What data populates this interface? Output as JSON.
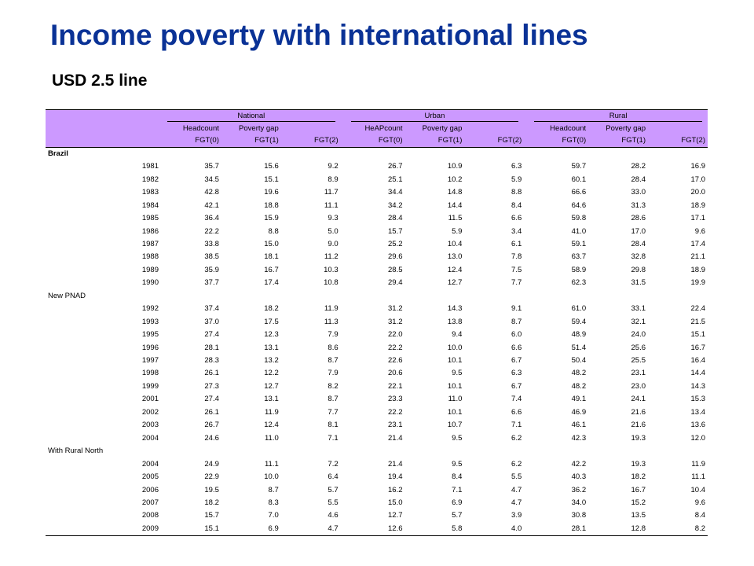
{
  "title": "Income poverty with international lines",
  "subtitle": "USD 2.5 line",
  "table": {
    "groups": [
      "National",
      "Urban",
      "Rural"
    ],
    "measure_labels": [
      [
        "Headcount",
        "Poverty gap",
        ""
      ],
      [
        "HeAPcount",
        "Poverty gap",
        ""
      ],
      [
        "Headcount",
        "Poverty gap",
        ""
      ]
    ],
    "fgt_labels": [
      "FGT(0)",
      "FGT(1)",
      "FGT(2)"
    ],
    "sections": [
      {
        "label": "Brazil",
        "rows": [
          [
            "1981",
            "35.7",
            "15.6",
            "9.2",
            "26.7",
            "10.9",
            "6.3",
            "59.7",
            "28.2",
            "16.9"
          ],
          [
            "1982",
            "34.5",
            "15.1",
            "8.9",
            "25.1",
            "10.2",
            "5.9",
            "60.1",
            "28.4",
            "17.0"
          ],
          [
            "1983",
            "42.8",
            "19.6",
            "11.7",
            "34.4",
            "14.8",
            "8.8",
            "66.6",
            "33.0",
            "20.0"
          ],
          [
            "1984",
            "42.1",
            "18.8",
            "11.1",
            "34.2",
            "14.4",
            "8.4",
            "64.6",
            "31.3",
            "18.9"
          ],
          [
            "1985",
            "36.4",
            "15.9",
            "9.3",
            "28.4",
            "11.5",
            "6.6",
            "59.8",
            "28.6",
            "17.1"
          ],
          [
            "1986",
            "22.2",
            "8.8",
            "5.0",
            "15.7",
            "5.9",
            "3.4",
            "41.0",
            "17.0",
            "9.6"
          ],
          [
            "1987",
            "33.8",
            "15.0",
            "9.0",
            "25.2",
            "10.4",
            "6.1",
            "59.1",
            "28.4",
            "17.4"
          ],
          [
            "1988",
            "38.5",
            "18.1",
            "11.2",
            "29.6",
            "13.0",
            "7.8",
            "63.7",
            "32.8",
            "21.1"
          ],
          [
            "1989",
            "35.9",
            "16.7",
            "10.3",
            "28.5",
            "12.4",
            "7.5",
            "58.9",
            "29.8",
            "18.9"
          ],
          [
            "1990",
            "37.7",
            "17.4",
            "10.8",
            "29.4",
            "12.7",
            "7.7",
            "62.3",
            "31.5",
            "19.9"
          ]
        ]
      },
      {
        "label": "New PNAD",
        "rows": [
          [
            "1992",
            "37.4",
            "18.2",
            "11.9",
            "31.2",
            "14.3",
            "9.1",
            "61.0",
            "33.1",
            "22.4"
          ],
          [
            "1993",
            "37.0",
            "17.5",
            "11.3",
            "31.2",
            "13.8",
            "8.7",
            "59.4",
            "32.1",
            "21.5"
          ],
          [
            "1995",
            "27.4",
            "12.3",
            "7.9",
            "22.0",
            "9.4",
            "6.0",
            "48.9",
            "24.0",
            "15.1"
          ],
          [
            "1996",
            "28.1",
            "13.1",
            "8.6",
            "22.2",
            "10.0",
            "6.6",
            "51.4",
            "25.6",
            "16.7"
          ],
          [
            "1997",
            "28.3",
            "13.2",
            "8.7",
            "22.6",
            "10.1",
            "6.7",
            "50.4",
            "25.5",
            "16.4"
          ],
          [
            "1998",
            "26.1",
            "12.2",
            "7.9",
            "20.6",
            "9.5",
            "6.3",
            "48.2",
            "23.1",
            "14.4"
          ],
          [
            "1999",
            "27.3",
            "12.7",
            "8.2",
            "22.1",
            "10.1",
            "6.7",
            "48.2",
            "23.0",
            "14.3"
          ],
          [
            "2001",
            "27.4",
            "13.1",
            "8.7",
            "23.3",
            "11.0",
            "7.4",
            "49.1",
            "24.1",
            "15.3"
          ],
          [
            "2002",
            "26.1",
            "11.9",
            "7.7",
            "22.2",
            "10.1",
            "6.6",
            "46.9",
            "21.6",
            "13.4"
          ],
          [
            "2003",
            "26.7",
            "12.4",
            "8.1",
            "23.1",
            "10.7",
            "7.1",
            "46.1",
            "21.6",
            "13.6"
          ],
          [
            "2004",
            "24.6",
            "11.0",
            "7.1",
            "21.4",
            "9.5",
            "6.2",
            "42.3",
            "19.3",
            "12.0"
          ]
        ]
      },
      {
        "label": "With Rural North",
        "rows": [
          [
            "2004",
            "24.9",
            "11.1",
            "7.2",
            "21.4",
            "9.5",
            "6.2",
            "42.2",
            "19.3",
            "11.9"
          ],
          [
            "2005",
            "22.9",
            "10.0",
            "6.4",
            "19.4",
            "8.4",
            "5.5",
            "40.3",
            "18.2",
            "11.1"
          ],
          [
            "2006",
            "19.5",
            "8.7",
            "5.7",
            "16.2",
            "7.1",
            "4.7",
            "36.2",
            "16.7",
            "10.4"
          ],
          [
            "2007",
            "18.2",
            "8.3",
            "5.5",
            "15.0",
            "6.9",
            "4.7",
            "34.0",
            "15.2",
            "9.6"
          ],
          [
            "2008",
            "15.7",
            "7.0",
            "4.6",
            "12.7",
            "5.7",
            "3.9",
            "30.8",
            "13.5",
            "8.4"
          ],
          [
            "2009",
            "15.1",
            "6.9",
            "4.7",
            "12.6",
            "5.8",
            "4.0",
            "28.1",
            "12.8",
            "8.2"
          ]
        ]
      }
    ]
  },
  "colors": {
    "title": "#0a3296",
    "header_bg": "#cc99ff"
  }
}
